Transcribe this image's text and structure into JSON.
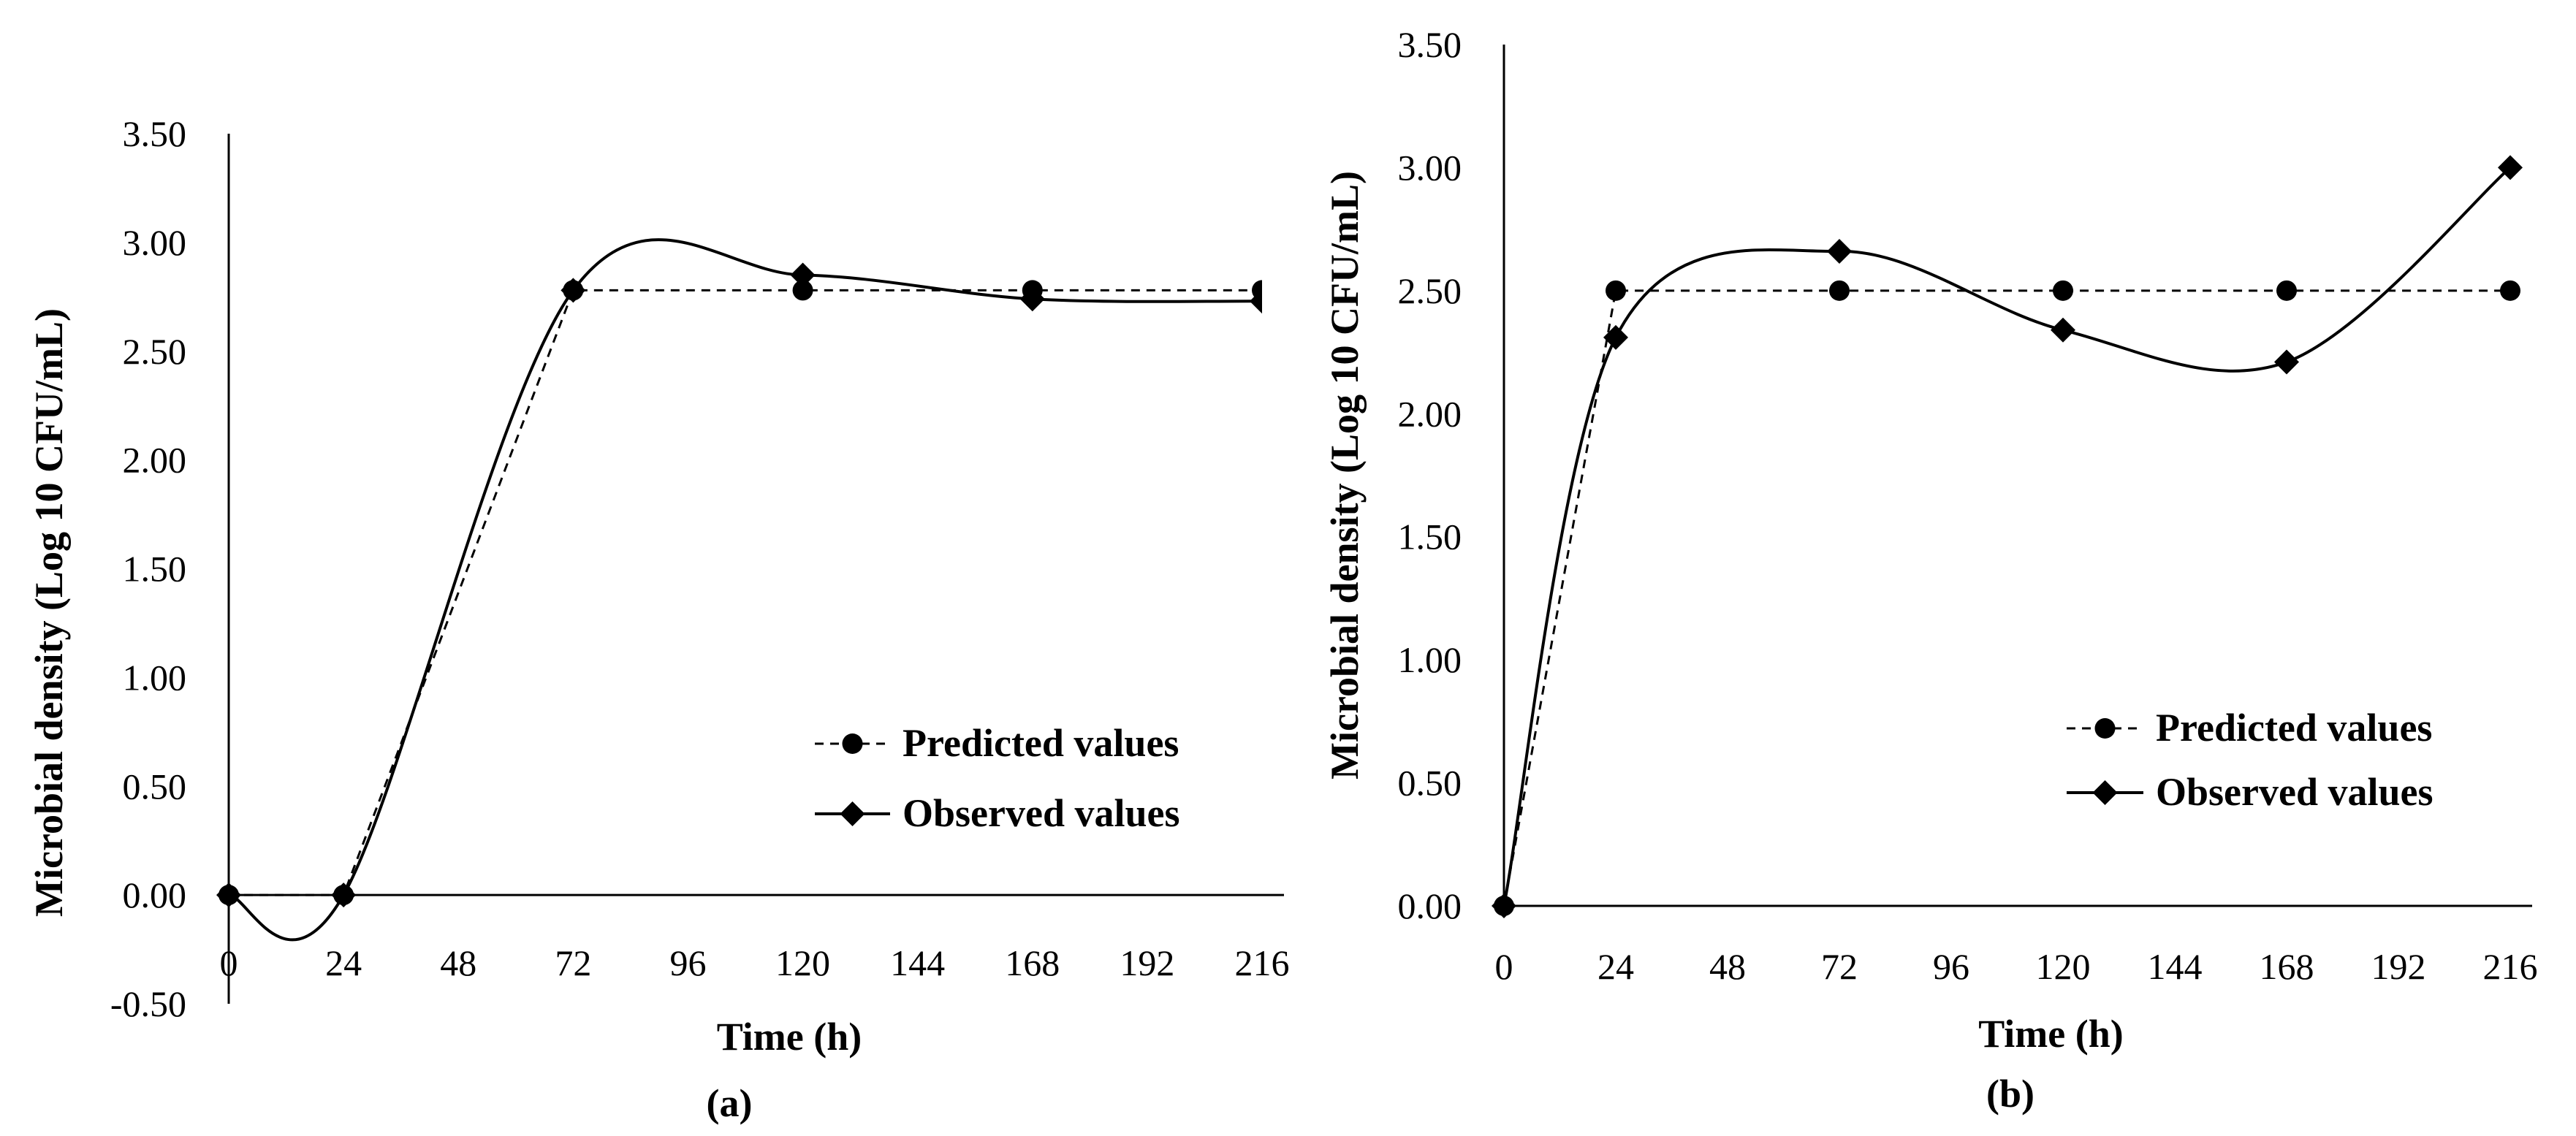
{
  "chart_data": [
    {
      "type": "line",
      "panel_label": "(a)",
      "xlabel": "Time (h)",
      "ylabel": "Microbial density (Log 10 CFU/mL)",
      "x_ticks": [
        "0",
        "24",
        "48",
        "72",
        "96",
        "120",
        "144",
        "168",
        "192",
        "216"
      ],
      "y_ticks": [
        "-0.50",
        "0.00",
        "0.50",
        "1.00",
        "1.50",
        "2.00",
        "2.50",
        "3.00",
        "3.50"
      ],
      "xlim": [
        0,
        216
      ],
      "ylim": [
        -0.5,
        3.5
      ],
      "legend_position": "lower-right",
      "series": [
        {
          "name": "Predicted values",
          "marker": "circle",
          "line_style": "dashed",
          "smooth": false,
          "x": [
            0,
            24,
            72,
            120,
            168,
            216
          ],
          "y": [
            0.0,
            0.0,
            2.78,
            2.78,
            2.78,
            2.78
          ]
        },
        {
          "name": "Observed values",
          "marker": "diamond",
          "line_style": "solid",
          "smooth": true,
          "x": [
            0,
            24,
            72,
            120,
            168,
            216
          ],
          "y": [
            0.0,
            0.0,
            2.78,
            2.85,
            2.74,
            2.73
          ]
        }
      ]
    },
    {
      "type": "line",
      "panel_label": "(b)",
      "xlabel": "Time (h)",
      "ylabel": "Microbial density (Log 10 CFU/mL)",
      "x_ticks": [
        "0",
        "24",
        "48",
        "72",
        "96",
        "120",
        "144",
        "168",
        "192",
        "216"
      ],
      "y_ticks": [
        "0.00",
        "0.50",
        "1.00",
        "1.50",
        "2.00",
        "2.50",
        "3.00",
        "3.50"
      ],
      "xlim": [
        0,
        216
      ],
      "ylim": [
        0,
        3.5
      ],
      "legend_position": "lower-right",
      "series": [
        {
          "name": "Predicted values",
          "marker": "circle",
          "line_style": "dashed",
          "smooth": false,
          "x": [
            0,
            24,
            72,
            120,
            168,
            216
          ],
          "y": [
            0.0,
            2.5,
            2.5,
            2.5,
            2.5,
            2.5
          ]
        },
        {
          "name": "Observed values",
          "marker": "diamond",
          "line_style": "solid",
          "smooth": true,
          "x": [
            0,
            24,
            72,
            120,
            168,
            216
          ],
          "y": [
            0.0,
            2.31,
            2.66,
            2.34,
            2.21,
            3.0
          ]
        }
      ]
    }
  ]
}
